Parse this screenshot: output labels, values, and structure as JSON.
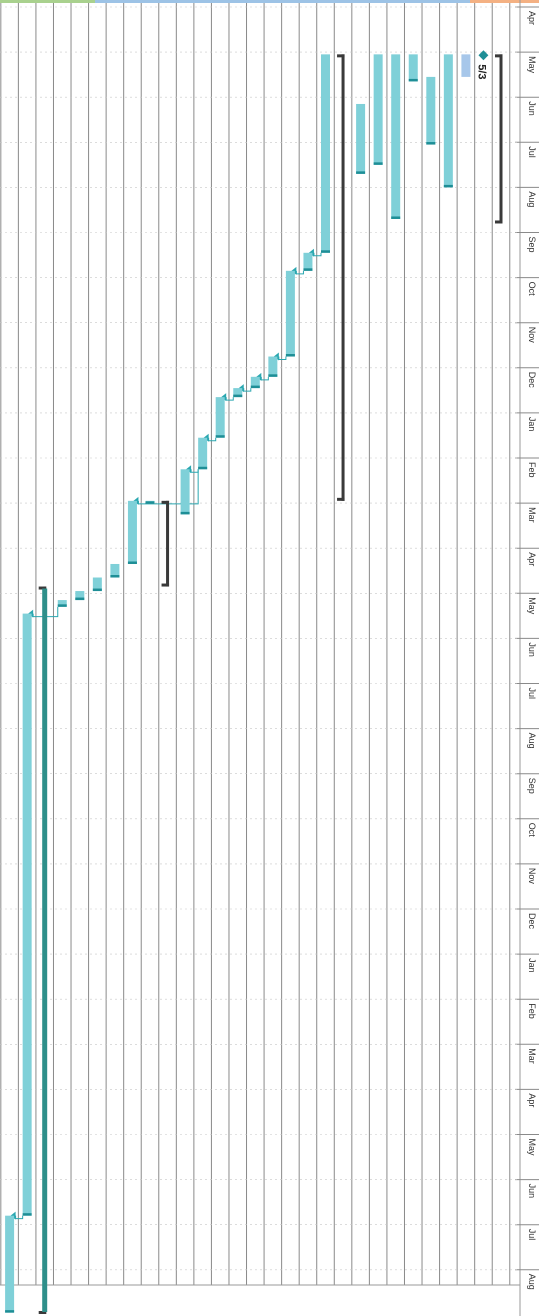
{
  "timescale": {
    "months": [
      "Apr",
      "May",
      "Jun",
      "Jul",
      "Aug",
      "Sep",
      "Oct",
      "Nov",
      "Dec",
      "Jan",
      "Feb",
      "Mar",
      "Apr",
      "May",
      "Jun",
      "Jul",
      "Aug",
      "Sep",
      "Oct",
      "Nov",
      "Dec",
      "Jan",
      "Feb",
      "Mar",
      "Apr",
      "May",
      "Jun",
      "Jul",
      "Aug"
    ]
  },
  "milestone": {
    "label": "5/3"
  },
  "colors": {
    "task_bar": "#7fd0d8",
    "task_end_cap": "#1e8e96",
    "summary_bar": "#3a3a3a",
    "critical_bar": "#2e8f8a",
    "link_line": "#2aa7b0",
    "milestone": "#1e8e96",
    "gridline": "#8a8a8a",
    "inactive_task": "#a7c7ea",
    "header_band": [
      "#a9d18e",
      "#9dc3e6",
      "#f4b183"
    ]
  },
  "tasks": [
    {
      "id": "summary-top",
      "kind": "summary",
      "start": 1.05,
      "end": 4.8
    },
    {
      "id": "milestone-5-3",
      "kind": "milestone",
      "start": 1.07,
      "end": 1.07
    },
    {
      "id": "inactive-task",
      "kind": "inactive",
      "start": 1.05,
      "end": 1.55
    },
    {
      "id": "t1",
      "kind": "task",
      "start": 1.05,
      "end": 4.0
    },
    {
      "id": "t2",
      "kind": "task",
      "start": 1.55,
      "end": 3.05
    },
    {
      "id": "t3",
      "kind": "task",
      "start": 1.05,
      "end": 1.65
    },
    {
      "id": "t4",
      "kind": "task",
      "start": 1.05,
      "end": 4.7
    },
    {
      "id": "t5",
      "kind": "task",
      "start": 1.05,
      "end": 3.5
    },
    {
      "id": "t6",
      "kind": "task",
      "start": 2.15,
      "end": 3.7
    },
    {
      "id": "summary-main",
      "kind": "summary",
      "start": 1.05,
      "end": 10.95
    },
    {
      "id": "t7",
      "kind": "task",
      "start": 1.05,
      "end": 5.45
    },
    {
      "id": "t8",
      "kind": "task",
      "start": 5.45,
      "end": 5.85
    },
    {
      "id": "t9",
      "kind": "task",
      "start": 5.85,
      "end": 7.75
    },
    {
      "id": "t10",
      "kind": "task",
      "start": 7.75,
      "end": 8.2
    },
    {
      "id": "t11",
      "kind": "task",
      "start": 8.2,
      "end": 8.45
    },
    {
      "id": "t12",
      "kind": "task",
      "start": 8.45,
      "end": 8.65
    },
    {
      "id": "t13",
      "kind": "task",
      "start": 8.65,
      "end": 9.55
    },
    {
      "id": "t14",
      "kind": "task",
      "start": 9.55,
      "end": 10.25
    },
    {
      "id": "t15",
      "kind": "task",
      "start": 10.25,
      "end": 11.25
    },
    {
      "id": "summary-mid",
      "kind": "summary",
      "start": 10.95,
      "end": 12.85
    },
    {
      "id": "t16",
      "kind": "task",
      "start": 10.95,
      "end": 10.98
    },
    {
      "id": "t17",
      "kind": "task",
      "start": 10.95,
      "end": 12.35
    },
    {
      "id": "t18",
      "kind": "task",
      "start": 12.35,
      "end": 12.65
    },
    {
      "id": "t19",
      "kind": "task",
      "start": 12.65,
      "end": 12.95
    },
    {
      "id": "t20",
      "kind": "task",
      "start": 12.95,
      "end": 13.15
    },
    {
      "id": "t21",
      "kind": "task",
      "start": 13.15,
      "end": 13.3
    },
    {
      "id": "summary-long",
      "kind": "summary",
      "start": 12.85,
      "end": 28.98
    },
    {
      "id": "t22",
      "kind": "task",
      "start": 13.45,
      "end": 26.8
    },
    {
      "id": "t23",
      "kind": "task",
      "start": 26.8,
      "end": 28.95
    }
  ],
  "links": [
    [
      "t7",
      "t8"
    ],
    [
      "t8",
      "t9"
    ],
    [
      "t9",
      "t10"
    ],
    [
      "t10",
      "t11"
    ],
    [
      "t11",
      "t12"
    ],
    [
      "t12",
      "t13"
    ],
    [
      "t13",
      "t14"
    ],
    [
      "t14",
      "t15"
    ],
    [
      "t14",
      "t17"
    ],
    [
      "t21",
      "t22"
    ],
    [
      "t22",
      "t23"
    ]
  ]
}
